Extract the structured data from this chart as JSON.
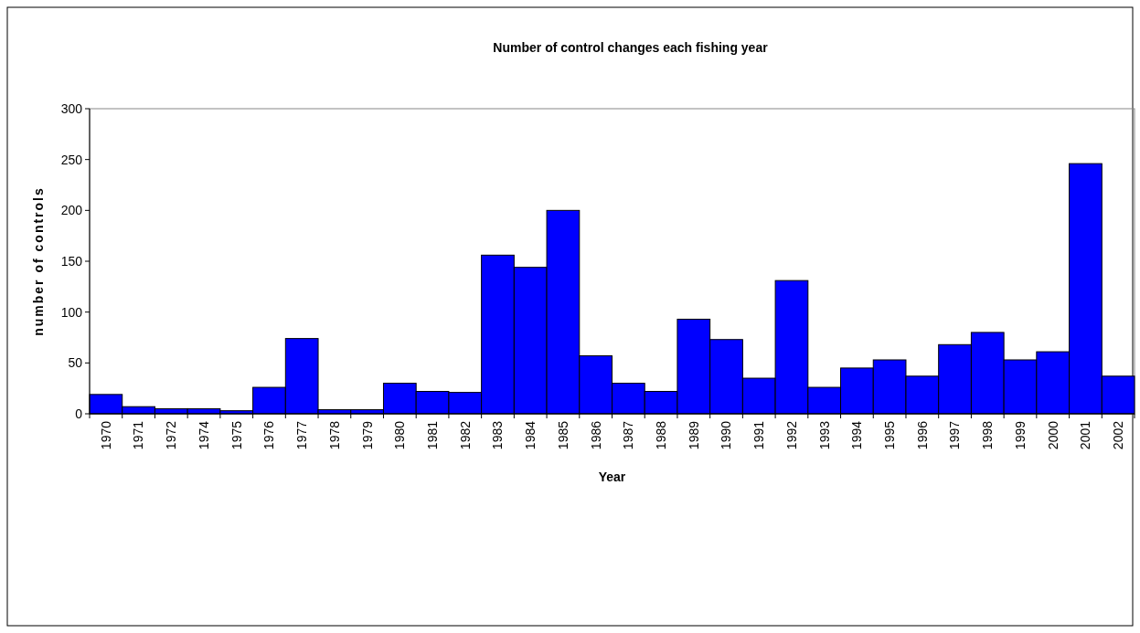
{
  "chart_data": {
    "type": "bar",
    "title": "Number of control changes each fishing year",
    "xlabel": "Year",
    "ylabel": "number of controls",
    "categories": [
      "1970",
      "1971",
      "1972",
      "1974",
      "1975",
      "1976",
      "1977",
      "1978",
      "1979",
      "1980",
      "1981",
      "1982",
      "1983",
      "1984",
      "1985",
      "1986",
      "1987",
      "1988",
      "1989",
      "1990",
      "1991",
      "1992",
      "1993",
      "1994",
      "1995",
      "1996",
      "1997",
      "1998",
      "1999",
      "2000",
      "2001",
      "2002"
    ],
    "values": [
      19,
      7,
      5,
      5,
      3,
      26,
      74,
      4,
      4,
      30,
      22,
      21,
      156,
      144,
      200,
      57,
      30,
      22,
      93,
      73,
      35,
      131,
      26,
      45,
      53,
      37,
      68,
      80,
      53,
      61,
      246,
      37
    ],
    "color": "#0000ff",
    "ylim": [
      0,
      300
    ],
    "yticks": [
      0,
      50,
      100,
      150,
      200,
      250,
      300
    ],
    "grid": false
  }
}
